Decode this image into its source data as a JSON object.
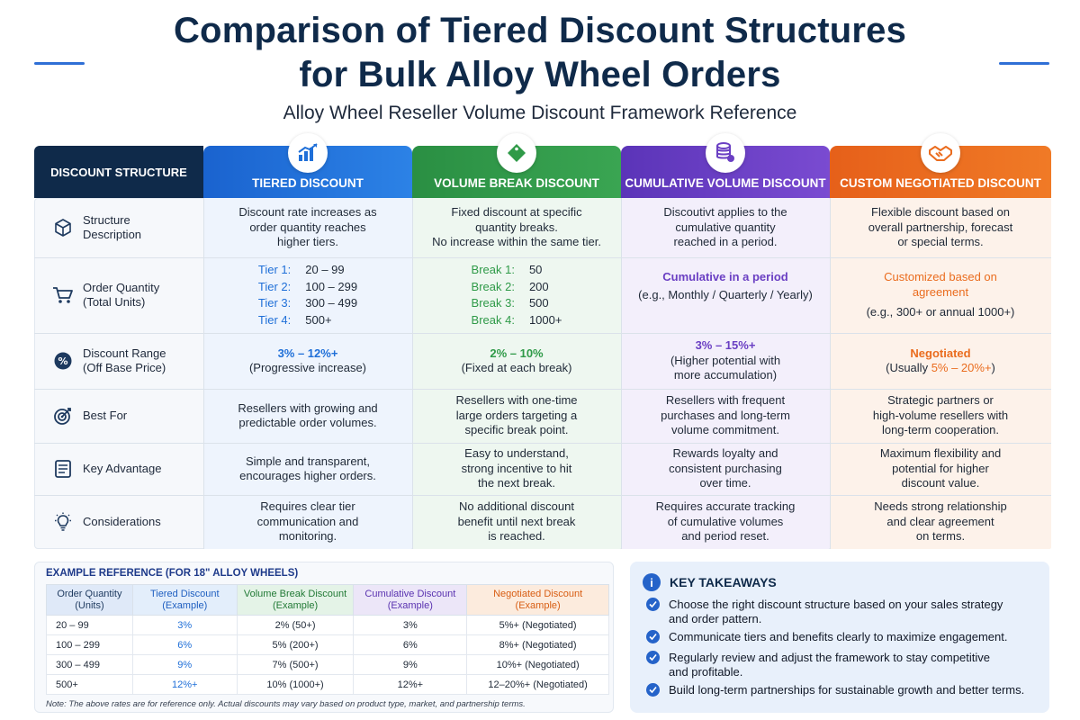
{
  "title_line1": "Comparison of Tiered Discount Structures",
  "title_line2": "for Bulk Alloy Wheel Orders",
  "subtitle": "Alloy Wheel Reseller Volume Discount Framework Reference",
  "colors": {
    "navy": "#0f2a4a",
    "blue": "#1f6fd8",
    "green": "#2f9a48",
    "purple": "#6a3fc3",
    "orange": "#ea6c1e"
  },
  "header": {
    "structure": "DISCOUNT STRUCTURE",
    "tiered": "TIERED DISCOUNT",
    "volume": "VOLUME BREAK DISCOUNT",
    "cumulative": "CUMULATIVE VOLUME DISCOUNT",
    "custom": "CUSTOM NEGOTIATED DISCOUNT"
  },
  "header_icons": [
    "bar-chart-icon",
    "price-tag-icon",
    "coin-stack-icon",
    "handshake-icon"
  ],
  "rows": {
    "description": {
      "label1": "Structure",
      "label2": "Description",
      "icon": "cube-icon",
      "tiered": [
        "Discount rate increases as",
        "order quantity reaches",
        "higher tiers."
      ],
      "volume": [
        "Fixed discount at specific",
        "quantity breaks.",
        "No increase within the same tier."
      ],
      "cumulative": [
        "Discoutivt applies to the",
        "cumulative quantity",
        "reached in a period."
      ],
      "custom": [
        "Flexible discount based on",
        "overall partnership, forecast",
        "or special terms."
      ]
    },
    "quantity": {
      "label1": "Order Quantity",
      "label2": "(Total Units)",
      "icon": "cart-icon",
      "tiered": [
        [
          "Tier 1:",
          "20 – 99"
        ],
        [
          "Tier 2:",
          "100 – 299"
        ],
        [
          "Tier 3:",
          "300 – 499"
        ],
        [
          "Tier 4:",
          "500+"
        ]
      ],
      "volume": [
        [
          "Break 1:",
          "50"
        ],
        [
          "Break 2:",
          "200"
        ],
        [
          "Break 3:",
          "500"
        ],
        [
          "Break 4:",
          "1000+"
        ]
      ],
      "cumulative_head": "Cumulative in a period",
      "cumulative_sub": "(e.g., Monthly / Quarterly / Yearly)",
      "custom_head1": "Customized based on",
      "custom_head2": "agreement",
      "custom_sub": "(e.g., 300+ or annual 1000+)"
    },
    "range": {
      "label1": "Discount Range",
      "label2": "(Off Base Price)",
      "icon": "percent-badge-icon",
      "tiered_head": "3% – 12%+",
      "tiered_sub": "(Progressive increase)",
      "volume_head": "2% – 10%",
      "volume_sub": "(Fixed at each break)",
      "cumulative_head": "3% – 15%+",
      "cumulative_sub1": "(Higher potential with",
      "cumulative_sub2": "more accumulation)",
      "custom_head": "Negotiated",
      "custom_sub_pre": "(Usually ",
      "custom_sub_val": "5% – 20%+",
      "custom_sub_post": ")"
    },
    "best": {
      "label1": "Best For",
      "icon": "target-icon",
      "tiered": [
        "Resellers with growing and",
        "predictable order volumes."
      ],
      "volume": [
        "Resellers with one-time",
        "large orders targeting a",
        "specific break point."
      ],
      "cumulative": [
        "Resellers with frequent",
        "purchases and long-term",
        "volume commitment."
      ],
      "custom": [
        "Strategic partners or",
        "high-volume resellers with",
        "long-term cooperation."
      ]
    },
    "advantage": {
      "label1": "Key Advantage",
      "icon": "checklist-icon",
      "tiered": [
        "Simple and transparent,",
        "encourages higher orders."
      ],
      "volume": [
        "Easy to understand,",
        "strong incentive to hit",
        "the next break."
      ],
      "cumulative": [
        "Rewards loyalty and",
        "consistent purchasing",
        "over time."
      ],
      "custom": [
        "Maximum flexibility and",
        "potential for higher",
        "discount value."
      ]
    },
    "considerations": {
      "label1": "Considerations",
      "icon": "lightbulb-icon",
      "tiered": [
        "Requires clear tier",
        "communication and",
        "monitoring."
      ],
      "volume": [
        "No additional discount",
        "benefit until next break",
        "is reached."
      ],
      "cumulative": [
        "Requires accurate tracking",
        "of cumulative volumes",
        "and period reset."
      ],
      "custom": [
        "Needs strong relationship",
        "and clear agreement",
        "on terms."
      ]
    }
  },
  "example": {
    "title": "EXAMPLE REFERENCE (FOR 18\" ALLOY WHEELS)",
    "headers": [
      [
        "Order Quantity",
        "(Units)"
      ],
      [
        "Tiered Discount",
        "(Example)"
      ],
      [
        "Volume Break Discount",
        "(Example)"
      ],
      [
        "Cumulative Discount",
        "(Example)"
      ],
      [
        "Negotiated Discount",
        "(Example)"
      ]
    ],
    "rows": [
      [
        "20 – 99",
        "3%",
        "2% (50+)",
        "3%",
        "5%+ (Negotiated)"
      ],
      [
        "100 – 299",
        "6%",
        "5% (200+)",
        "6%",
        "8%+ (Negotiated)"
      ],
      [
        "300 – 499",
        "9%",
        "7% (500+)",
        "9%",
        "10%+ (Negotiated)"
      ],
      [
        "500+",
        "12%+",
        "10% (1000+)",
        "12%+",
        "12–20%+ (Negotiated)"
      ]
    ],
    "note": "Note: The above rates are for reference only. Actual discounts may vary based on product type, market, and partnership terms."
  },
  "takeaways": {
    "title": "KEY TAKEAWAYS",
    "items": [
      [
        "Choose the right discount structure based on your sales strategy",
        "and order pattern."
      ],
      [
        "Communicate tiers and benefits clearly to maximize engagement."
      ],
      [
        "Regularly review and adjust the framework to stay competitive",
        "and profitable."
      ],
      [
        "Build long-term partnerships for sustainable growth and better terms."
      ]
    ]
  }
}
